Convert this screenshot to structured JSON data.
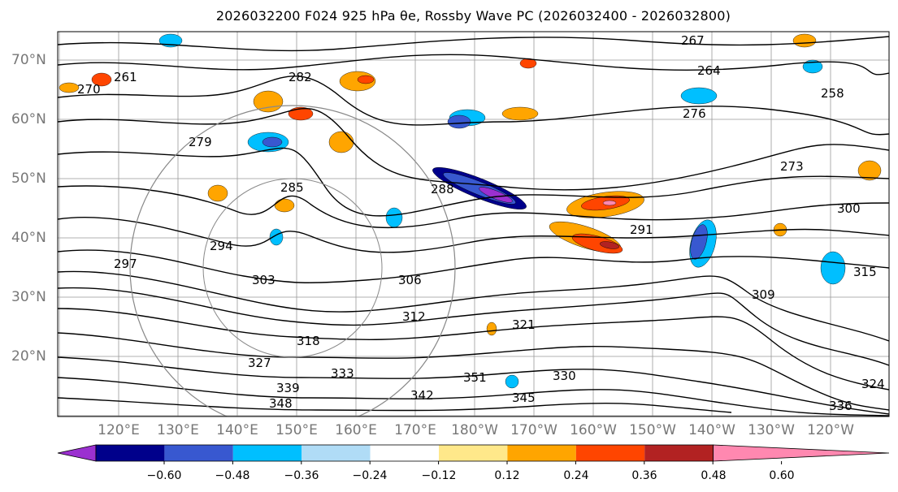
{
  "title": "2026032200 F024 925 hPa θe, Rossby Wave PC (2026032400 - 2026032800)",
  "map": {
    "lat_labels": [
      "70°N",
      "60°N",
      "50°N",
      "40°N",
      "30°N",
      "20°N"
    ],
    "lon_labels": [
      "120°E",
      "130°E",
      "140°E",
      "150°E",
      "160°E",
      "170°E",
      "180°W",
      "170°W",
      "160°W",
      "150°W",
      "140°W",
      "130°W",
      "120°W"
    ],
    "contour_labels": [
      "267",
      "264",
      "261",
      "258",
      "270",
      "282",
      "279",
      "276",
      "273",
      "285",
      "288",
      "294",
      "291",
      "297",
      "300",
      "303",
      "306",
      "309",
      "312",
      "315",
      "318",
      "321",
      "324",
      "327",
      "330",
      "333",
      "336",
      "339",
      "342",
      "345",
      "348",
      "351"
    ]
  },
  "colorbar": {
    "ticks": [
      "−0.60",
      "−0.48",
      "−0.36",
      "−0.24",
      "−0.12",
      "0.12",
      "0.24",
      "0.36",
      "0.48",
      "0.60"
    ],
    "colors": [
      "#9b30d0",
      "#00008b",
      "#3858d0",
      "#00bfff",
      "#b0dcf6",
      "#ffffff",
      "#ffe88a",
      "#ffa500",
      "#ff4500",
      "#b22222",
      "#ff88b0"
    ]
  }
}
